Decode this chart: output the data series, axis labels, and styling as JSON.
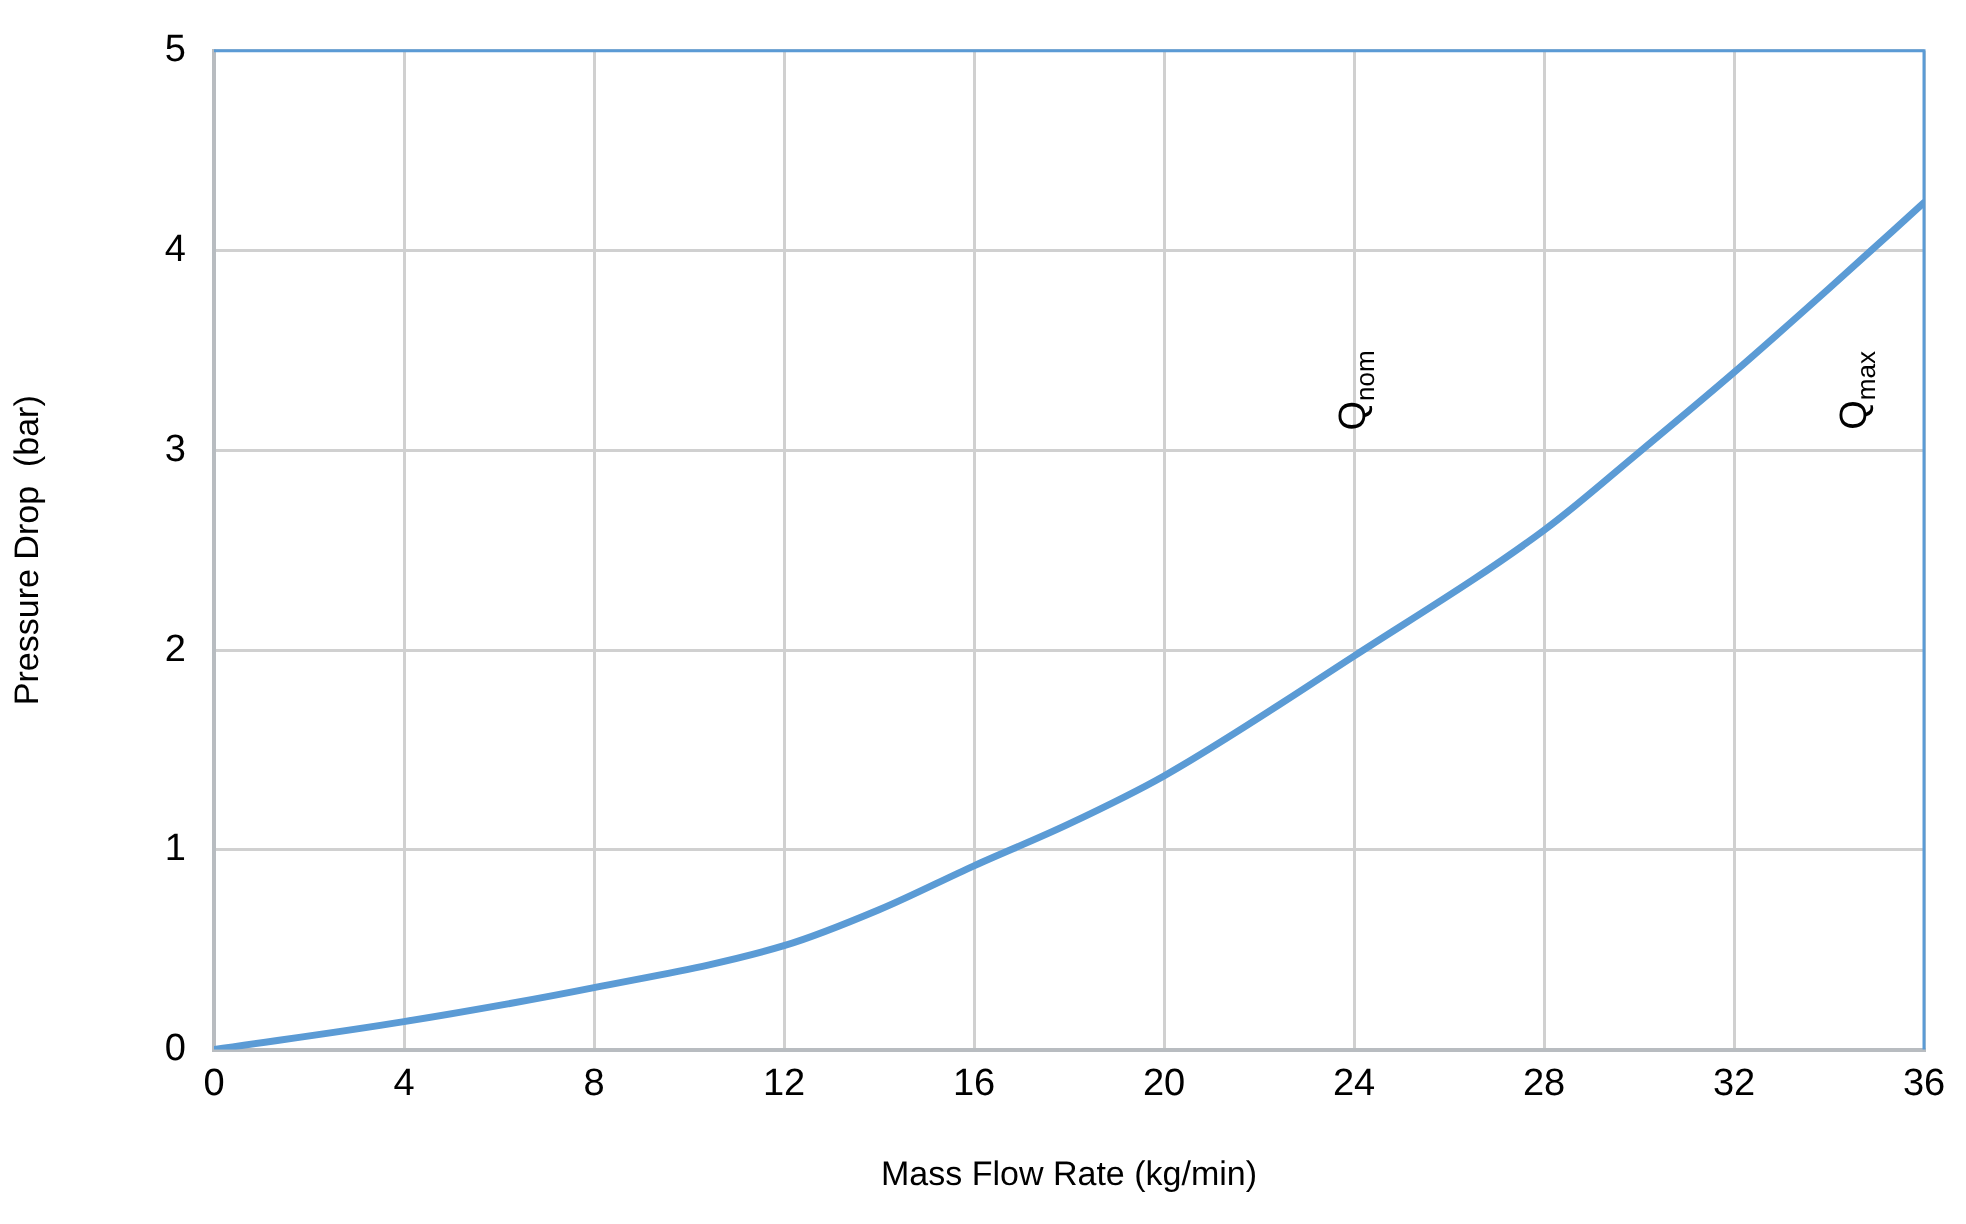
{
  "chart_data": {
    "type": "line",
    "xlabel": "Mass Flow Rate (kg/min)",
    "ylabel": "Pressure Drop  (bar)",
    "series": [
      {
        "color": "#5b9bd5",
        "x": [
          0,
          4,
          8,
          12,
          14,
          16,
          18,
          20,
          24,
          28,
          30,
          32,
          34,
          36
        ],
        "values": [
          0,
          0.14,
          0.31,
          0.52,
          0.7,
          0.92,
          1.13,
          1.37,
          1.97,
          2.6,
          2.99,
          3.39,
          3.81,
          4.24
        ]
      }
    ],
    "xlim": [
      0,
      36
    ],
    "xticks": [
      0,
      4,
      8,
      12,
      16,
      20,
      24,
      28,
      32,
      36
    ],
    "ylim": [
      0,
      5
    ],
    "yticks": [
      0,
      1,
      2,
      3,
      4,
      5
    ],
    "grid": true,
    "marker": "none",
    "line_style": "solid",
    "annotations": [
      "Q$_{nom}$",
      "Q$_{max}$"
    ]
  }
}
